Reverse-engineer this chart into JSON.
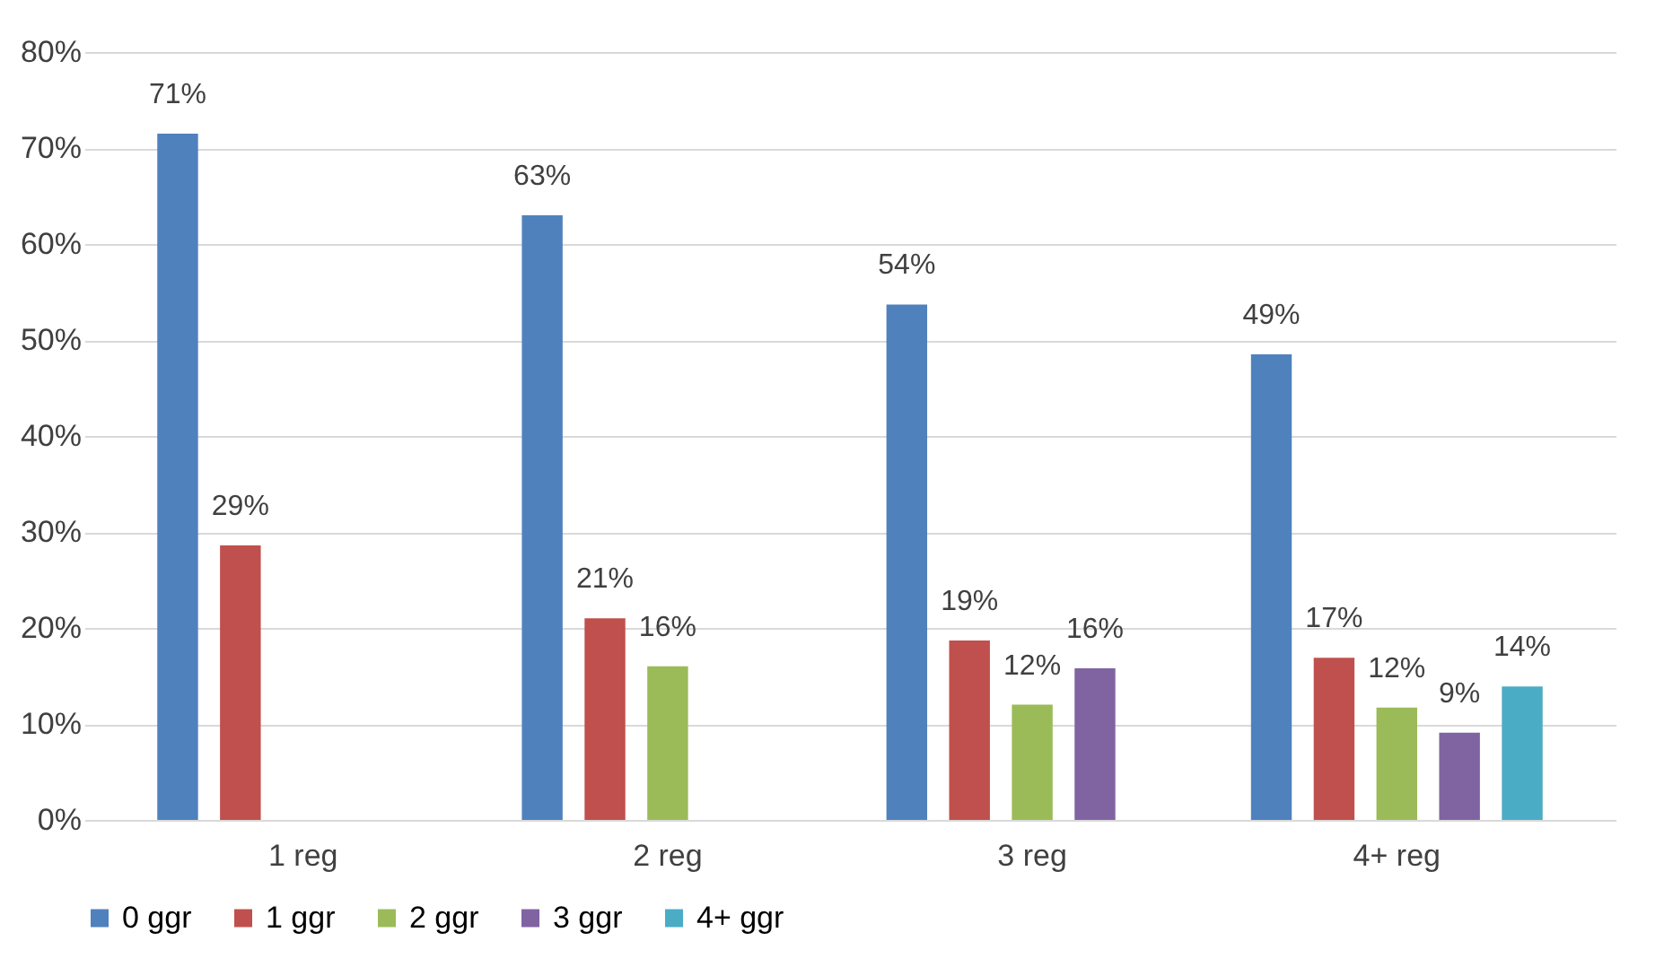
{
  "chart_data": {
    "type": "bar",
    "categories": [
      "1 reg",
      "2 reg",
      "3 reg",
      "4+ reg"
    ],
    "series": [
      {
        "name": "0 ggr",
        "color": "#4f81bd",
        "values": [
          71.5,
          63,
          53.7,
          48.5
        ],
        "value_labels": [
          "71%",
          "63%",
          "54%",
          "49%"
        ]
      },
      {
        "name": "1 ggr",
        "color": "#c0504d",
        "values": [
          28.6,
          21,
          18.7,
          16.9
        ],
        "value_labels": [
          "29%",
          "21%",
          "19%",
          "17%"
        ]
      },
      {
        "name": "2 ggr",
        "color": "#9bbb59",
        "values": [
          null,
          16,
          12,
          11.7
        ],
        "value_labels": [
          null,
          "16%",
          "12%",
          "12%"
        ]
      },
      {
        "name": "3 ggr",
        "color": "#8064a2",
        "values": [
          null,
          null,
          15.8,
          9.1
        ],
        "value_labels": [
          null,
          null,
          "16%",
          "9%"
        ]
      },
      {
        "name": "4+ ggr",
        "color": "#4bacc6",
        "values": [
          null,
          null,
          null,
          13.9
        ],
        "value_labels": [
          null,
          null,
          null,
          "14%"
        ]
      }
    ],
    "ylim": [
      0,
      80
    ],
    "yticks": [
      {
        "value": 0,
        "label": "0%"
      },
      {
        "value": 10,
        "label": "10%"
      },
      {
        "value": 20,
        "label": "20%"
      },
      {
        "value": 30,
        "label": "30%"
      },
      {
        "value": 40,
        "label": "40%"
      },
      {
        "value": 50,
        "label": "50%"
      },
      {
        "value": 60,
        "label": "60%"
      },
      {
        "value": 70,
        "label": "70%"
      },
      {
        "value": 80,
        "label": "80%"
      }
    ],
    "grid": "y",
    "legend": "bottom"
  }
}
